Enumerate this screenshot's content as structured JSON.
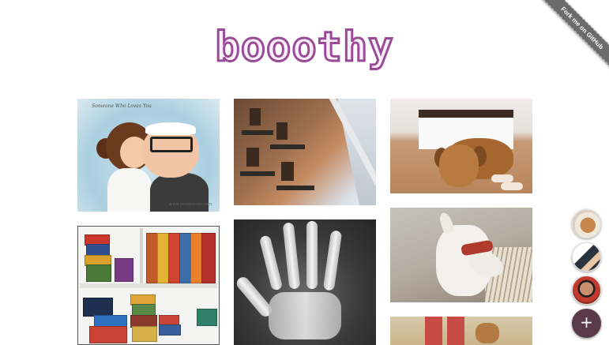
{
  "header": {
    "logo_text": "booothy"
  },
  "ribbon": {
    "label": "Fork me on GitHub"
  },
  "gallery": {
    "items": [
      {
        "name": "photo-couple-illustration",
        "caption": "Someone Who Loves You",
        "signature": "www.jonastorres.com"
      },
      {
        "name": "photo-building-facade"
      },
      {
        "name": "photo-dog-lying-floor"
      },
      {
        "name": "photo-board-game-shelves"
      },
      {
        "name": "photo-hand-xray"
      },
      {
        "name": "photo-greyhound-red-collar"
      },
      {
        "name": "photo-dog-walk"
      }
    ]
  },
  "sidebar": {
    "avatars": [
      {
        "icon": "avatar-dog"
      },
      {
        "icon": "avatar-person-hood"
      },
      {
        "icon": "avatar-person-red-shirt"
      }
    ],
    "add_button": {
      "label": "+",
      "icon": "plus-icon"
    }
  },
  "colors": {
    "logo_stroke": "#9a4b98",
    "logo_fill": "#f8eef8",
    "ribbon": "#6b6b6b",
    "add_button": "#5a3a48"
  }
}
